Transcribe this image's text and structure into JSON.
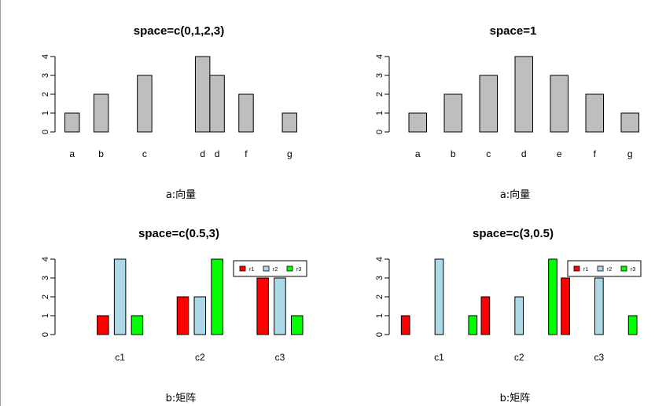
{
  "chart_data": [
    {
      "type": "bar",
      "title": "space=c(0,1,2,3)",
      "xlabel": "a:向量",
      "ylabel": "",
      "ylim": [
        0,
        4
      ],
      "yticks": [
        0,
        1,
        2,
        3,
        4
      ],
      "categories": [
        "a",
        "b",
        "c",
        "d",
        "d",
        "f",
        "g"
      ],
      "values": [
        1,
        2,
        3,
        4,
        3,
        2,
        1
      ],
      "space": [
        0,
        1,
        2,
        3,
        0,
        1,
        2
      ],
      "colors": [
        "#bebebe"
      ]
    },
    {
      "type": "bar",
      "title": "space=1",
      "xlabel": "a:向量",
      "ylabel": "",
      "ylim": [
        0,
        4
      ],
      "yticks": [
        0,
        1,
        2,
        3,
        4
      ],
      "categories": [
        "a",
        "b",
        "c",
        "d",
        "e",
        "f",
        "g"
      ],
      "values": [
        1,
        2,
        3,
        4,
        3,
        2,
        1
      ],
      "space": [
        1,
        1,
        1,
        1,
        1,
        1,
        1
      ],
      "colors": [
        "#bebebe"
      ]
    },
    {
      "type": "bar",
      "title": "space=c(0.5,3)",
      "xlabel": "b:矩阵",
      "ylabel": "",
      "ylim": [
        0,
        4
      ],
      "yticks": [
        0,
        1,
        2,
        3,
        4
      ],
      "categories": [
        "c1",
        "c2",
        "c3"
      ],
      "series": [
        {
          "name": "r1",
          "values": [
            1,
            2,
            3
          ]
        },
        {
          "name": "r2",
          "values": [
            4,
            2,
            3
          ]
        },
        {
          "name": "r3",
          "values": [
            1,
            4,
            1
          ]
        }
      ],
      "space": [
        0.5,
        3
      ],
      "colors": [
        "#ff0000",
        "#add8e6",
        "#00ff00"
      ],
      "legend": "top-right"
    },
    {
      "type": "bar",
      "title": "space=c(3,0.5)",
      "xlabel": "b:矩阵",
      "ylabel": "",
      "ylim": [
        0,
        4
      ],
      "yticks": [
        0,
        1,
        2,
        3,
        4
      ],
      "categories": [
        "c1",
        "c2",
        "c3"
      ],
      "series": [
        {
          "name": "r1",
          "values": [
            1,
            2,
            3
          ]
        },
        {
          "name": "r2",
          "values": [
            4,
            2,
            3
          ]
        },
        {
          "name": "r3",
          "values": [
            1,
            4,
            1
          ]
        }
      ],
      "space": [
        3,
        0.5
      ],
      "colors": [
        "#ff0000",
        "#add8e6",
        "#00ff00"
      ],
      "legend": "top-right"
    }
  ]
}
